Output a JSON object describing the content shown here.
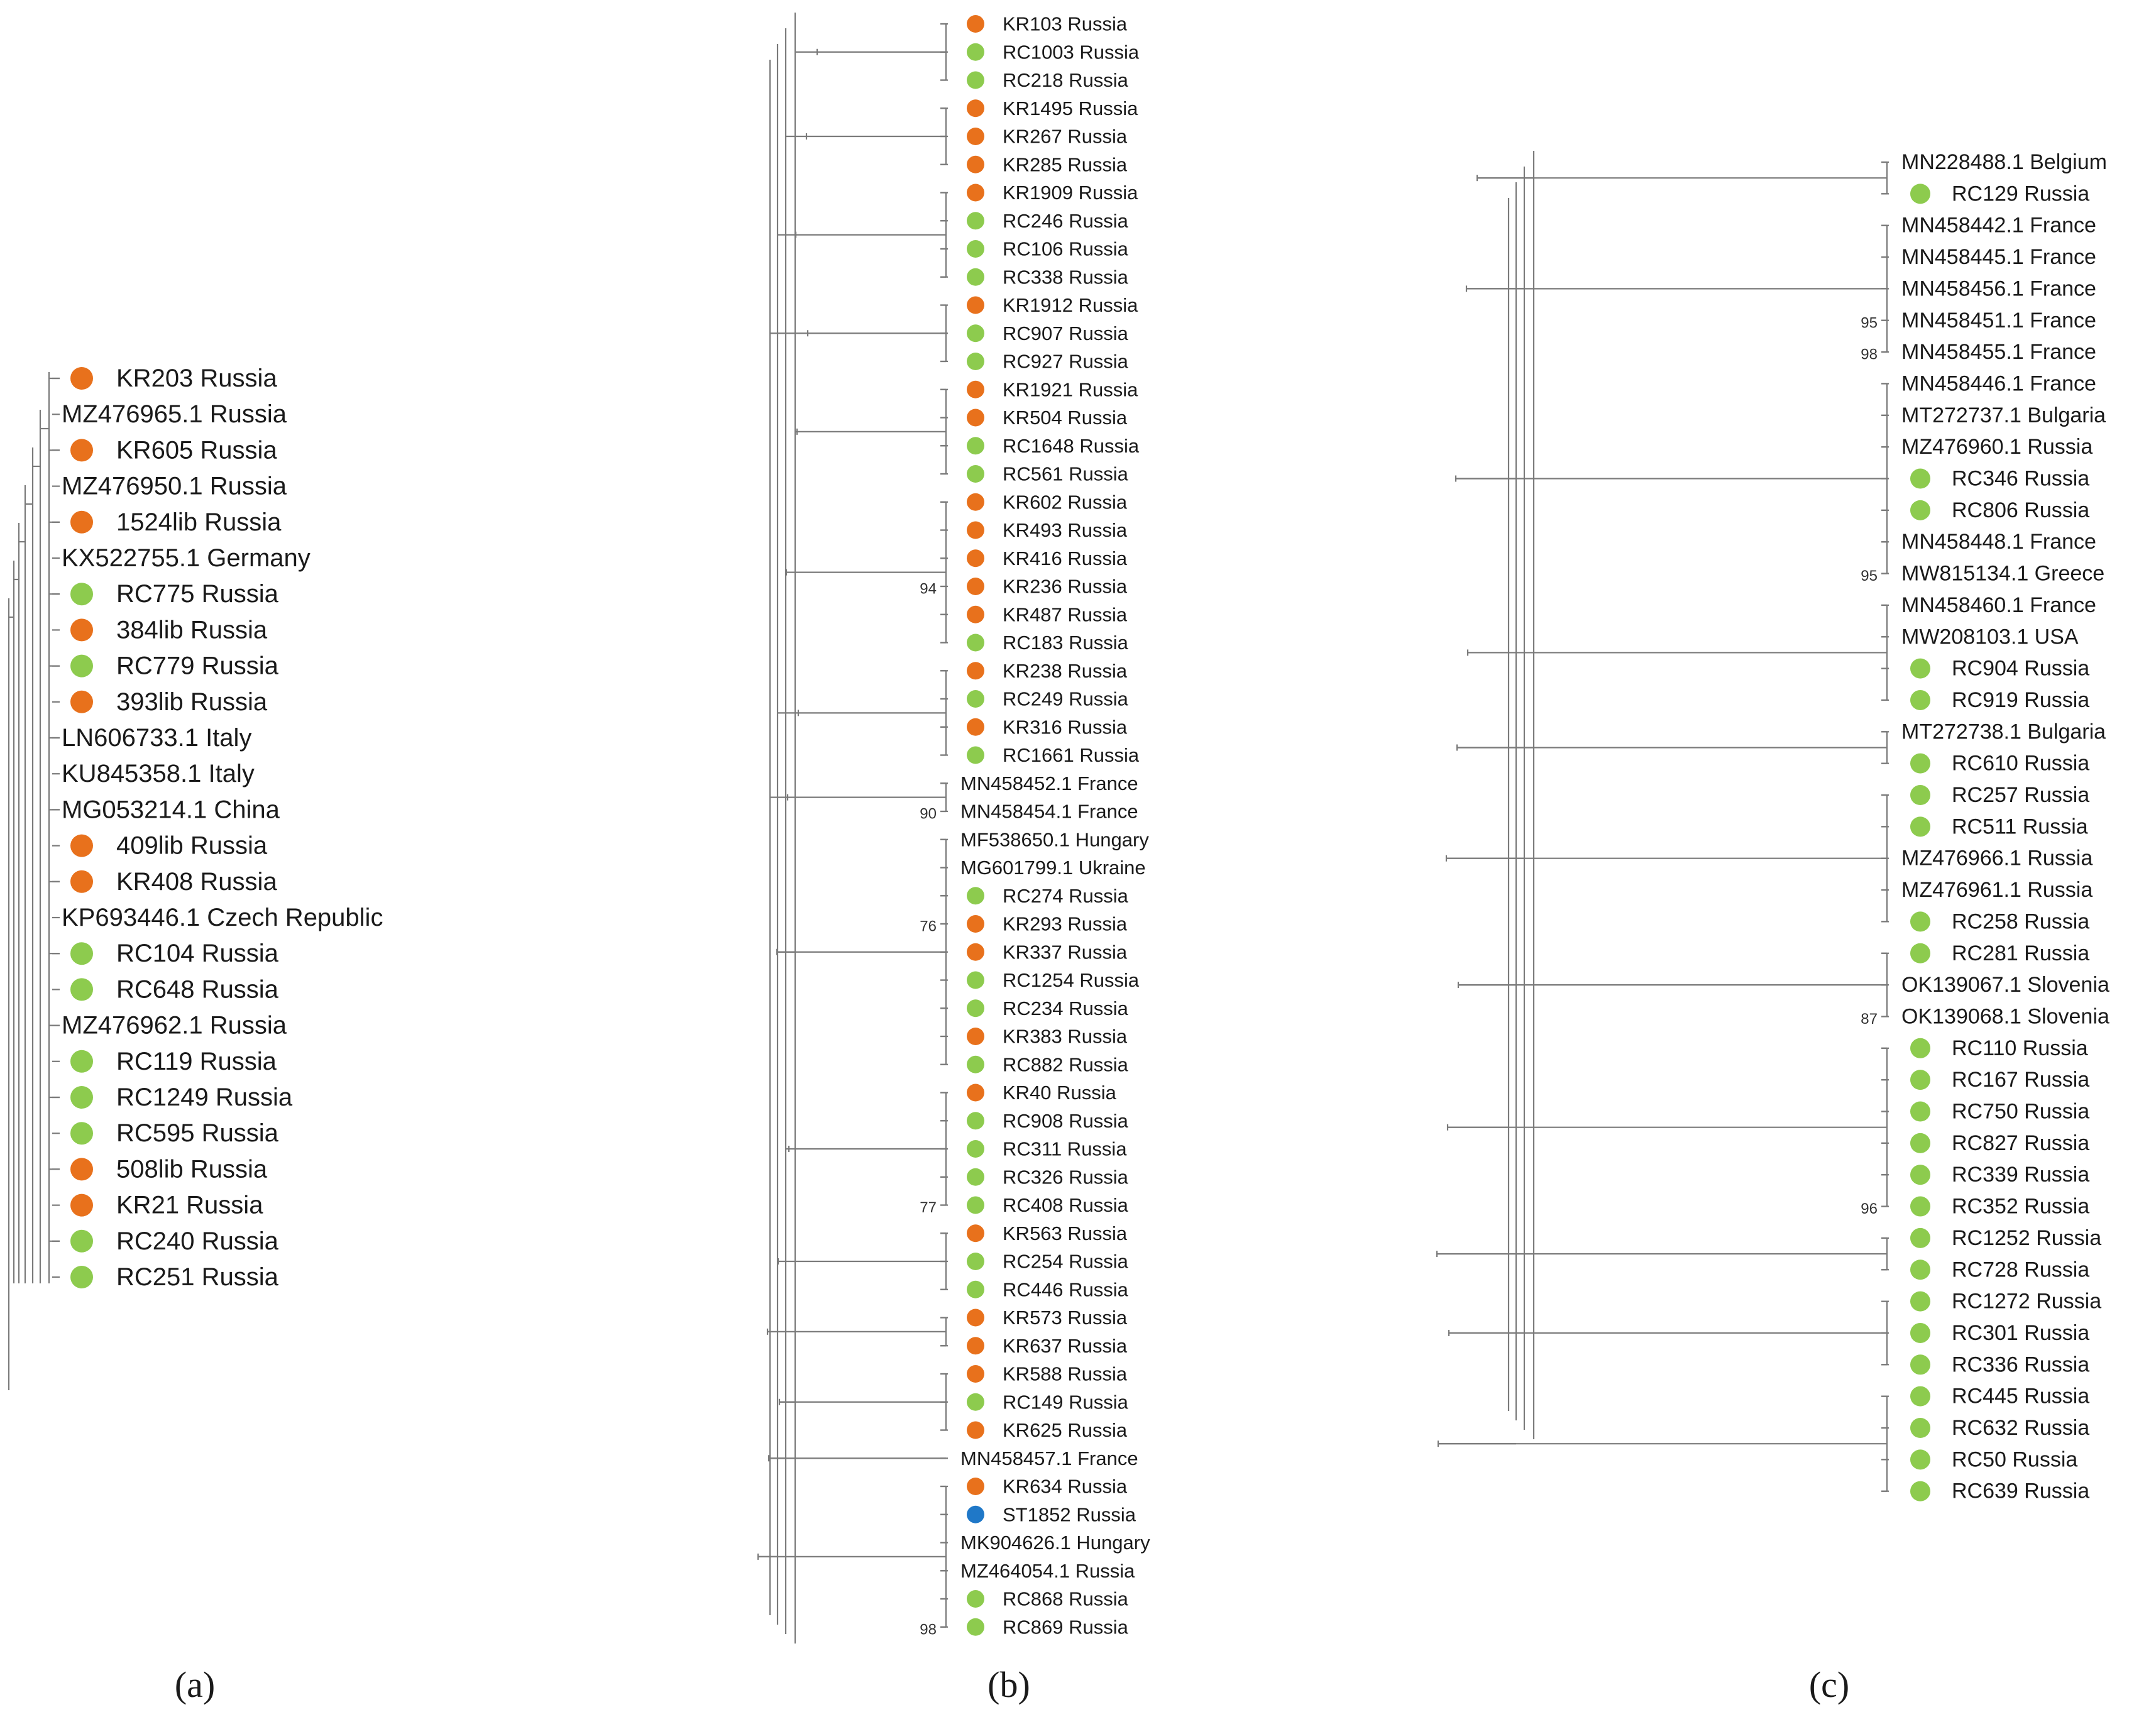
{
  "colors": {
    "KR": "#E8711C",
    "RC": "#8DCB4E",
    "ST": "#1F78C8",
    "branch": "#7a7a7a",
    "text": "#1a1a1a"
  },
  "panels": [
    {
      "id": "a",
      "caption": "(a)",
      "leaves": [
        {
          "label": "KR203 Russia",
          "marker": "KR"
        },
        {
          "label": "MZ476965.1 Russia",
          "marker": ""
        },
        {
          "label": "KR605 Russia",
          "marker": "KR"
        },
        {
          "label": "MZ476950.1 Russia",
          "marker": ""
        },
        {
          "label": "1524lib Russia",
          "marker": "KR"
        },
        {
          "label": "KX522755.1 Germany",
          "marker": ""
        },
        {
          "label": "RC775 Russia",
          "marker": "RC"
        },
        {
          "label": "384lib Russia",
          "marker": "KR"
        },
        {
          "label": "RC779 Russia",
          "marker": "RC"
        },
        {
          "label": "393lib Russia",
          "marker": "KR"
        },
        {
          "label": "LN606733.1 Italy",
          "marker": ""
        },
        {
          "label": "KU845358.1 Italy",
          "marker": ""
        },
        {
          "label": "MG053214.1 China",
          "marker": ""
        },
        {
          "label": "409lib Russia",
          "marker": "KR"
        },
        {
          "label": "KR408 Russia",
          "marker": "KR"
        },
        {
          "label": "KP693446.1 Czech Republic",
          "marker": ""
        },
        {
          "label": "RC104 Russia",
          "marker": "RC"
        },
        {
          "label": "RC648 Russia",
          "marker": "RC"
        },
        {
          "label": "MZ476962.1 Russia",
          "marker": ""
        },
        {
          "label": "RC119 Russia",
          "marker": "RC"
        },
        {
          "label": "RC1249 Russia",
          "marker": "RC"
        },
        {
          "label": "RC595 Russia",
          "marker": "RC"
        },
        {
          "label": "508lib Russia",
          "marker": "KR"
        },
        {
          "label": "KR21 Russia",
          "marker": "KR"
        },
        {
          "label": "RC240 Russia",
          "marker": "RC"
        },
        {
          "label": "RC251 Russia",
          "marker": "RC"
        }
      ],
      "clades": [],
      "bootstrap": []
    },
    {
      "id": "b",
      "caption": "(b)",
      "leaves": [
        {
          "label": "KR103  Russia",
          "marker": "KR"
        },
        {
          "label": "RC1003  Russia",
          "marker": "RC"
        },
        {
          "label": "RC218  Russia",
          "marker": "RC"
        },
        {
          "label": "KR1495  Russia",
          "marker": "KR"
        },
        {
          "label": "KR267  Russia",
          "marker": "KR"
        },
        {
          "label": "KR285  Russia",
          "marker": "KR"
        },
        {
          "label": "KR1909  Russia",
          "marker": "KR"
        },
        {
          "label": "RC246  Russia",
          "marker": "RC"
        },
        {
          "label": "RC106  Russia",
          "marker": "RC"
        },
        {
          "label": "RC338  Russia",
          "marker": "RC"
        },
        {
          "label": "KR1912  Russia",
          "marker": "KR"
        },
        {
          "label": "RC907  Russia",
          "marker": "RC"
        },
        {
          "label": "RC927  Russia",
          "marker": "RC"
        },
        {
          "label": "KR1921  Russia",
          "marker": "KR"
        },
        {
          "label": "KR504  Russia",
          "marker": "KR"
        },
        {
          "label": "RC1648  Russia",
          "marker": "RC"
        },
        {
          "label": "RC561  Russia",
          "marker": "RC"
        },
        {
          "label": "KR602  Russia",
          "marker": "KR"
        },
        {
          "label": "KR493  Russia",
          "marker": "KR"
        },
        {
          "label": "KR416  Russia",
          "marker": "KR"
        },
        {
          "label": "KR236  Russia",
          "marker": "KR"
        },
        {
          "label": "KR487  Russia",
          "marker": "KR"
        },
        {
          "label": "RC183  Russia",
          "marker": "RC"
        },
        {
          "label": "KR238  Russia",
          "marker": "KR"
        },
        {
          "label": "RC249  Russia",
          "marker": "RC"
        },
        {
          "label": "KR316  Russia",
          "marker": "KR"
        },
        {
          "label": "RC1661  Russia",
          "marker": "RC"
        },
        {
          "label": "MN458452.1  France",
          "marker": ""
        },
        {
          "label": "MN458454.1  France",
          "marker": ""
        },
        {
          "label": "MF538650.1  Hungary",
          "marker": ""
        },
        {
          "label": "MG601799.1  Ukraine",
          "marker": ""
        },
        {
          "label": "RC274  Russia",
          "marker": "RC"
        },
        {
          "label": "KR293  Russia",
          "marker": "KR"
        },
        {
          "label": "KR337  Russia",
          "marker": "KR"
        },
        {
          "label": "RC1254  Russia",
          "marker": "RC"
        },
        {
          "label": "RC234  Russia",
          "marker": "RC"
        },
        {
          "label": "KR383  Russia",
          "marker": "KR"
        },
        {
          "label": "RC882  Russia",
          "marker": "RC"
        },
        {
          "label": "KR40  Russia",
          "marker": "KR"
        },
        {
          "label": "RC908  Russia",
          "marker": "RC"
        },
        {
          "label": "RC311  Russia",
          "marker": "RC"
        },
        {
          "label": "RC326  Russia",
          "marker": "RC"
        },
        {
          "label": "RC408  Russia",
          "marker": "RC"
        },
        {
          "label": "KR563  Russia",
          "marker": "KR"
        },
        {
          "label": "RC254  Russia",
          "marker": "RC"
        },
        {
          "label": "RC446  Russia",
          "marker": "RC"
        },
        {
          "label": "KR573  Russia",
          "marker": "KR"
        },
        {
          "label": "KR637  Russia",
          "marker": "KR"
        },
        {
          "label": "KR588  Russia",
          "marker": "KR"
        },
        {
          "label": "RC149  Russia",
          "marker": "RC"
        },
        {
          "label": "KR625  Russia",
          "marker": "KR"
        },
        {
          "label": "MN458457.1  France",
          "marker": ""
        },
        {
          "label": "KR634  Russia",
          "marker": "KR"
        },
        {
          "label": "ST1852  Russia",
          "marker": "ST"
        },
        {
          "label": "MK904626.1  Hungary",
          "marker": ""
        },
        {
          "label": "MZ464054.1  Russia",
          "marker": ""
        },
        {
          "label": "RC868  Russia",
          "marker": "RC"
        },
        {
          "label": "RC869  Russia",
          "marker": "RC"
        }
      ],
      "clades": [
        [
          0,
          2
        ],
        [
          3,
          5
        ],
        [
          6,
          9
        ],
        [
          10,
          12
        ],
        [
          13,
          16
        ],
        [
          17,
          22
        ],
        [
          23,
          26
        ],
        [
          27,
          28
        ],
        [
          29,
          37
        ],
        [
          38,
          42
        ],
        [
          43,
          45
        ],
        [
          46,
          47
        ],
        [
          48,
          50
        ],
        [
          51,
          51
        ],
        [
          52,
          57
        ]
      ],
      "bootstrap": [
        {
          "leaf": 20,
          "value": "94"
        },
        {
          "leaf": 28,
          "value": "90"
        },
        {
          "leaf": 32,
          "value": "76"
        },
        {
          "leaf": 42,
          "value": "77"
        },
        {
          "leaf": 57,
          "value": "98"
        }
      ]
    },
    {
      "id": "c",
      "caption": "(c)",
      "leaves": [
        {
          "label": "MN228488.1  Belgium",
          "marker": ""
        },
        {
          "label": "RC129  Russia",
          "marker": "RC"
        },
        {
          "label": "MN458442.1  France",
          "marker": ""
        },
        {
          "label": "MN458445.1  France",
          "marker": ""
        },
        {
          "label": "MN458456.1  France",
          "marker": ""
        },
        {
          "label": "MN458451.1  France",
          "marker": ""
        },
        {
          "label": "MN458455.1  France",
          "marker": ""
        },
        {
          "label": "MN458446.1  France",
          "marker": ""
        },
        {
          "label": "MT272737.1  Bulgaria",
          "marker": ""
        },
        {
          "label": "MZ476960.1  Russia",
          "marker": ""
        },
        {
          "label": "RC346  Russia",
          "marker": "RC"
        },
        {
          "label": "RC806  Russia",
          "marker": "RC"
        },
        {
          "label": "MN458448.1  France",
          "marker": ""
        },
        {
          "label": "MW815134.1  Greece",
          "marker": ""
        },
        {
          "label": "MN458460.1  France",
          "marker": ""
        },
        {
          "label": "MW208103.1  USA",
          "marker": ""
        },
        {
          "label": "RC904  Russia",
          "marker": "RC"
        },
        {
          "label": "RC919  Russia",
          "marker": "RC"
        },
        {
          "label": "MT272738.1  Bulgaria",
          "marker": ""
        },
        {
          "label": "RC610  Russia",
          "marker": "RC"
        },
        {
          "label": "RC257  Russia",
          "marker": "RC"
        },
        {
          "label": "RC511  Russia",
          "marker": "RC"
        },
        {
          "label": "MZ476966.1  Russia",
          "marker": ""
        },
        {
          "label": "MZ476961.1  Russia",
          "marker": ""
        },
        {
          "label": "RC258  Russia",
          "marker": "RC"
        },
        {
          "label": "RC281  Russia",
          "marker": "RC"
        },
        {
          "label": "OK139067.1  Slovenia",
          "marker": ""
        },
        {
          "label": "OK139068.1  Slovenia",
          "marker": ""
        },
        {
          "label": "RC110  Russia",
          "marker": "RC"
        },
        {
          "label": "RC167  Russia",
          "marker": "RC"
        },
        {
          "label": "RC750  Russia",
          "marker": "RC"
        },
        {
          "label": "RC827  Russia",
          "marker": "RC"
        },
        {
          "label": "RC339  Russia",
          "marker": "RC"
        },
        {
          "label": "RC352  Russia",
          "marker": "RC"
        },
        {
          "label": "RC1252  Russia",
          "marker": "RC"
        },
        {
          "label": "RC728  Russia",
          "marker": "RC"
        },
        {
          "label": "RC1272  Russia",
          "marker": "RC"
        },
        {
          "label": "RC301  Russia",
          "marker": "RC"
        },
        {
          "label": "RC336  Russia",
          "marker": "RC"
        },
        {
          "label": "RC445  Russia",
          "marker": "RC"
        },
        {
          "label": "RC632  Russia",
          "marker": "RC"
        },
        {
          "label": "RC50  Russia",
          "marker": "RC"
        },
        {
          "label": "RC639  Russia",
          "marker": "RC"
        }
      ],
      "clades": [
        [
          0,
          1
        ],
        [
          2,
          6
        ],
        [
          7,
          13
        ],
        [
          14,
          17
        ],
        [
          18,
          19
        ],
        [
          20,
          24
        ],
        [
          25,
          27
        ],
        [
          28,
          33
        ],
        [
          34,
          35
        ],
        [
          36,
          38
        ],
        [
          39,
          42
        ]
      ],
      "bootstrap": [
        {
          "leaf": 5,
          "value": "95"
        },
        {
          "leaf": 6,
          "value": "98"
        },
        {
          "leaf": 13,
          "value": "95"
        },
        {
          "leaf": 27,
          "value": "87"
        },
        {
          "leaf": 33,
          "value": "96"
        }
      ]
    }
  ]
}
